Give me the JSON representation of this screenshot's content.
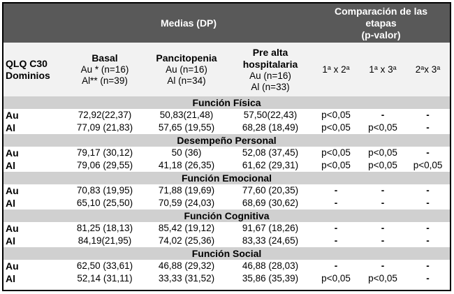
{
  "header": {
    "means_title": "Medias (DP)",
    "comparison_title_line1": "Comparación de las",
    "comparison_title_line2": "etapas",
    "comparison_title_line3": "(p-valor)",
    "domain_label_line1": "QLQ C30",
    "domain_label_line2": "Dominios",
    "stages": [
      {
        "title": "Basal",
        "title2": "",
        "au": "Au * (n=16)",
        "al": "Al** (n=39)"
      },
      {
        "title": "Pancitopenia",
        "title2": "",
        "au": "Au (n=16)",
        "al": "Al (n=34)"
      },
      {
        "title": "Pre alta",
        "title2": "hospitalaria",
        "au": "Au (n=16)",
        "al": "Al (n=33)"
      }
    ],
    "comparisons": [
      {
        "a": "1",
        "b": "2",
        "label": "1ª x 2ª"
      },
      {
        "a": "1",
        "b": "3",
        "label": "1ª x 3ª"
      },
      {
        "a": "2",
        "b": "3",
        "label": "2ªx 3ª"
      }
    ],
    "sup": "a",
    "x": " x ",
    "x_tight": "x "
  },
  "sections": [
    {
      "title": "Función Física",
      "rows": [
        {
          "label": "Au",
          "basal": "72,92(22,37)",
          "pancitopenia": "50,83(21,48)",
          "pre_alta": "57,50(22,43)",
          "p12": "p<0,05",
          "p13": "-",
          "p23": "-"
        },
        {
          "label": "Al",
          "basal": "77,09 (21,83)",
          "pancitopenia": "57,65 (19,55)",
          "pre_alta": "68,28 (18,49)",
          "p12": "p<0,05",
          "p13": "p<0,05",
          "p23": "-"
        }
      ]
    },
    {
      "title": "Desempeño Personal",
      "rows": [
        {
          "label": "Au",
          "basal": "79,17 (30,12)",
          "pancitopenia": "50 (36)",
          "pre_alta": "52,08 (37,45)",
          "p12": "p<0,05",
          "p13": "p<0,05",
          "p23": "-"
        },
        {
          "label": "Al",
          "basal": "79,06 (29,55)",
          "pancitopenia": "41,18 (26,35)",
          "pre_alta": "61,62 (29,31)",
          "p12": "p<0,05",
          "p13": "p<0,05",
          "p23": "p<0,05"
        }
      ]
    },
    {
      "title": "Función Emocional",
      "rows": [
        {
          "label": "Au",
          "basal": "70,83 (19,95)",
          "pancitopenia": "71,88 (19,69)",
          "pre_alta": "77,60 (20,35)",
          "p12": "-",
          "p13": "-",
          "p23": "-"
        },
        {
          "label": "Al",
          "basal": "65,10 (25,50)",
          "pancitopenia": "70,59 (24,03)",
          "pre_alta": "68,69 (30,62)",
          "p12": "-",
          "p13": "-",
          "p23": "-"
        }
      ]
    },
    {
      "title": "Función Cognitiva",
      "rows": [
        {
          "label": "Au",
          "basal": "81,25 (18,13)",
          "pancitopenia": "85,42 (19,12)",
          "pre_alta": "91,67 (18,26)",
          "p12": "-",
          "p13": "-",
          "p23": "-"
        },
        {
          "label": "Al",
          "basal": "84,19(21,95)",
          "pancitopenia": "74,02 (25,36)",
          "pre_alta": "83,33 (24,65)",
          "p12": "-",
          "p13": "-",
          "p23": "-"
        }
      ]
    },
    {
      "title": "Función Social",
      "rows": [
        {
          "label": "Au",
          "basal": "62,50 (33,61)",
          "pancitopenia": "46,88 (29,32)",
          "pre_alta": "46,88 (28,03)",
          "p12": "-",
          "p13": "-",
          "p23": "-"
        },
        {
          "label": "Al",
          "basal": "52,14 (31,11)",
          "pancitopenia": "33,33 (31,52)",
          "pre_alta": "35,86 (35,39)",
          "p12": "p<0,05",
          "p13": "p<0,05",
          "p23": "-"
        }
      ]
    }
  ],
  "colors": {
    "header_dark": "#595959",
    "subheader_bg": "#f2f2f2",
    "section_bg": "#d0d0d0",
    "border": "#000000"
  }
}
